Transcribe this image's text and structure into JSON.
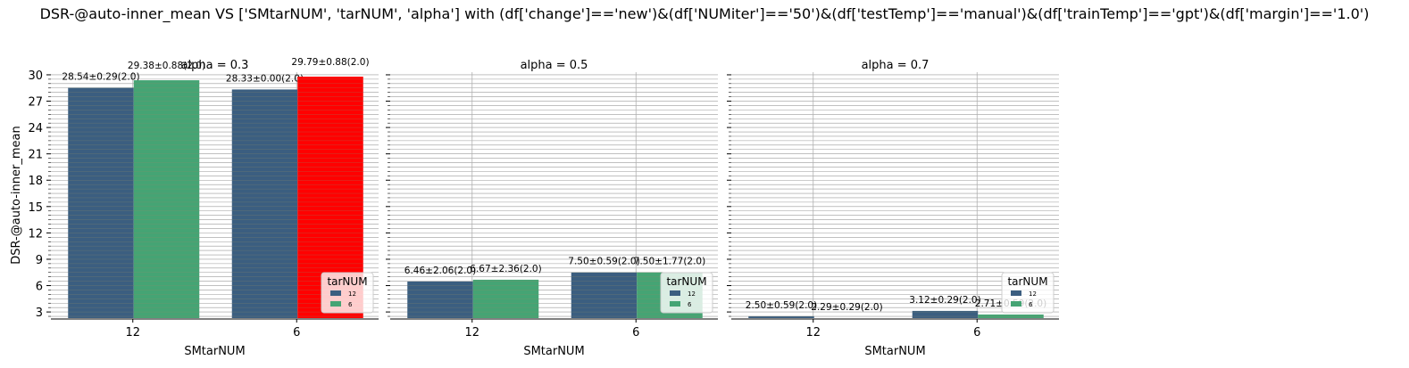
{
  "chart_data": {
    "type": "bar",
    "title": "DSR-@auto-inner_mean VS ['SMtarNUM', 'tarNUM', 'alpha'] with (df['change']=='new')&(df['NUMiter']=='50')&(df['testTemp']=='manual')&(df['trainTemp']=='gpt')&(df['margin']=='1.0')",
    "ylabel": "DSR-@auto-inner_mean",
    "xlabel": "SMtarNUM",
    "ylim": [
      2.3,
      30.3
    ],
    "yticks": [
      "3",
      "6",
      "9",
      "12",
      "15",
      "18",
      "21",
      "24",
      "27",
      "30"
    ],
    "categories": [
      "12",
      "6"
    ],
    "legend_title": "tarNUM",
    "legend_placement": "lower-right",
    "series_names": [
      "12",
      "6"
    ],
    "colors": {
      "tarNUM_12": "#3b5e80",
      "tarNUM_6": "#45a474",
      "highlight": "#ff0000"
    },
    "panels": [
      {
        "title": "alpha = 0.3",
        "series": [
          {
            "name": "12",
            "values": [
              28.54,
              28.33
            ],
            "labels": [
              "28.54±0.29(2.0)",
              "28.33±0.00(2.0)"
            ]
          },
          {
            "name": "6",
            "values": [
              29.38,
              29.79
            ],
            "labels": [
              "29.38±0.88(2.0)",
              "29.79±0.88(2.0)"
            ]
          }
        ]
      },
      {
        "title": "alpha = 0.5",
        "series": [
          {
            "name": "12",
            "values": [
              6.46,
              7.5
            ],
            "labels": [
              "6.46±2.06(2.0)",
              "7.50±0.59(2.0)"
            ]
          },
          {
            "name": "6",
            "values": [
              6.67,
              7.5
            ],
            "labels": [
              "6.67±2.36(2.0)",
              "7.50±1.77(2.0)"
            ]
          }
        ]
      },
      {
        "title": "alpha = 0.7",
        "series": [
          {
            "name": "12",
            "values": [
              2.5,
              3.12
            ],
            "labels": [
              "2.50±0.59(2.0)",
              "3.12±0.29(2.0)"
            ]
          },
          {
            "name": "6",
            "values": [
              2.29,
              2.71
            ],
            "labels": [
              "2.29±0.29(2.0)",
              "2.71±0.59(2.0)"
            ]
          }
        ]
      }
    ]
  }
}
